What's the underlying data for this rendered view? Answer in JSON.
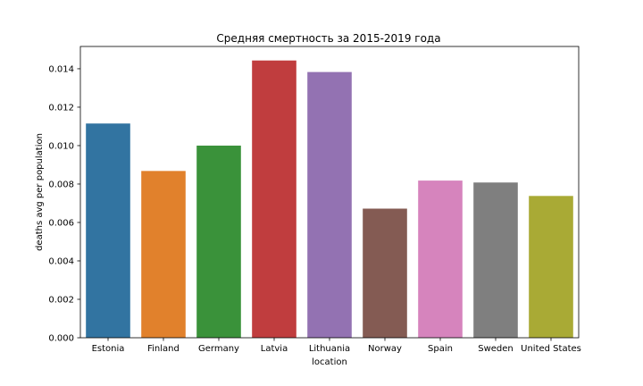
{
  "chart_data": {
    "type": "bar",
    "title": "Средняя смертность за 2015-2019 года",
    "xlabel": "location",
    "ylabel": "deaths avg per population",
    "categories": [
      "Estonia",
      "Finland",
      "Germany",
      "Latvia",
      "Lithuania",
      "Norway",
      "Spain",
      "Sweden",
      "United States"
    ],
    "values": [
      0.01115,
      0.00868,
      0.01,
      0.01443,
      0.01383,
      0.00672,
      0.00818,
      0.00808,
      0.00738
    ],
    "colors": [
      "#3274a1",
      "#e1812c",
      "#3a923a",
      "#c03d3e",
      "#9372b2",
      "#845b53",
      "#d684bd",
      "#7f7f7f",
      "#a9aa35"
    ],
    "ylim": [
      0,
      0.01516
    ],
    "yticks": [
      0.0,
      0.002,
      0.004,
      0.006,
      0.008,
      0.01,
      0.012,
      0.014
    ],
    "ytick_labels": [
      "0.000",
      "0.002",
      "0.004",
      "0.006",
      "0.008",
      "0.010",
      "0.012",
      "0.014"
    ],
    "grid": false,
    "legend": "none"
  }
}
